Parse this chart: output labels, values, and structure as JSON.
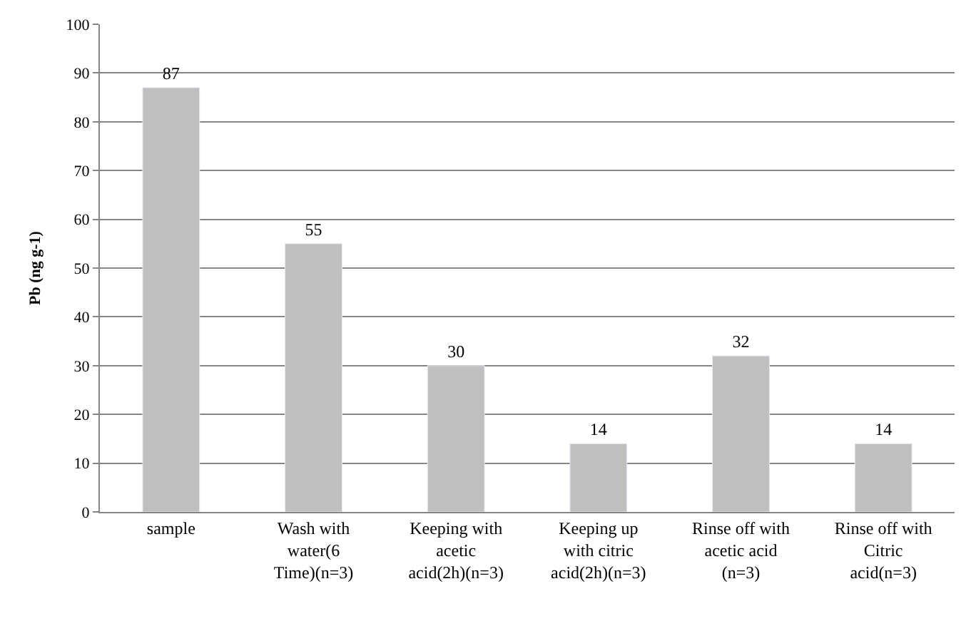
{
  "chart_data": {
    "type": "bar",
    "ylabel": "Pb (ng g-1)",
    "categories": [
      "sample",
      "Wash with water(6 Time)(n=3)",
      "Keeping with acetic acid(2h)(n=3)",
      "Keeping up with citric acid(2h)(n=3)",
      "Rinse off with acetic acid (n=3)",
      "Rinse off with Citric acid(n=3)"
    ],
    "values": [
      87,
      55,
      30,
      14,
      32,
      14
    ],
    "color": "#bfbfbf",
    "data_labels": true,
    "ylim": [
      0,
      100
    ],
    "yticks": [
      0,
      10,
      20,
      30,
      40,
      50,
      60,
      70,
      80,
      90,
      100
    ],
    "grid": "y",
    "legend": false
  }
}
